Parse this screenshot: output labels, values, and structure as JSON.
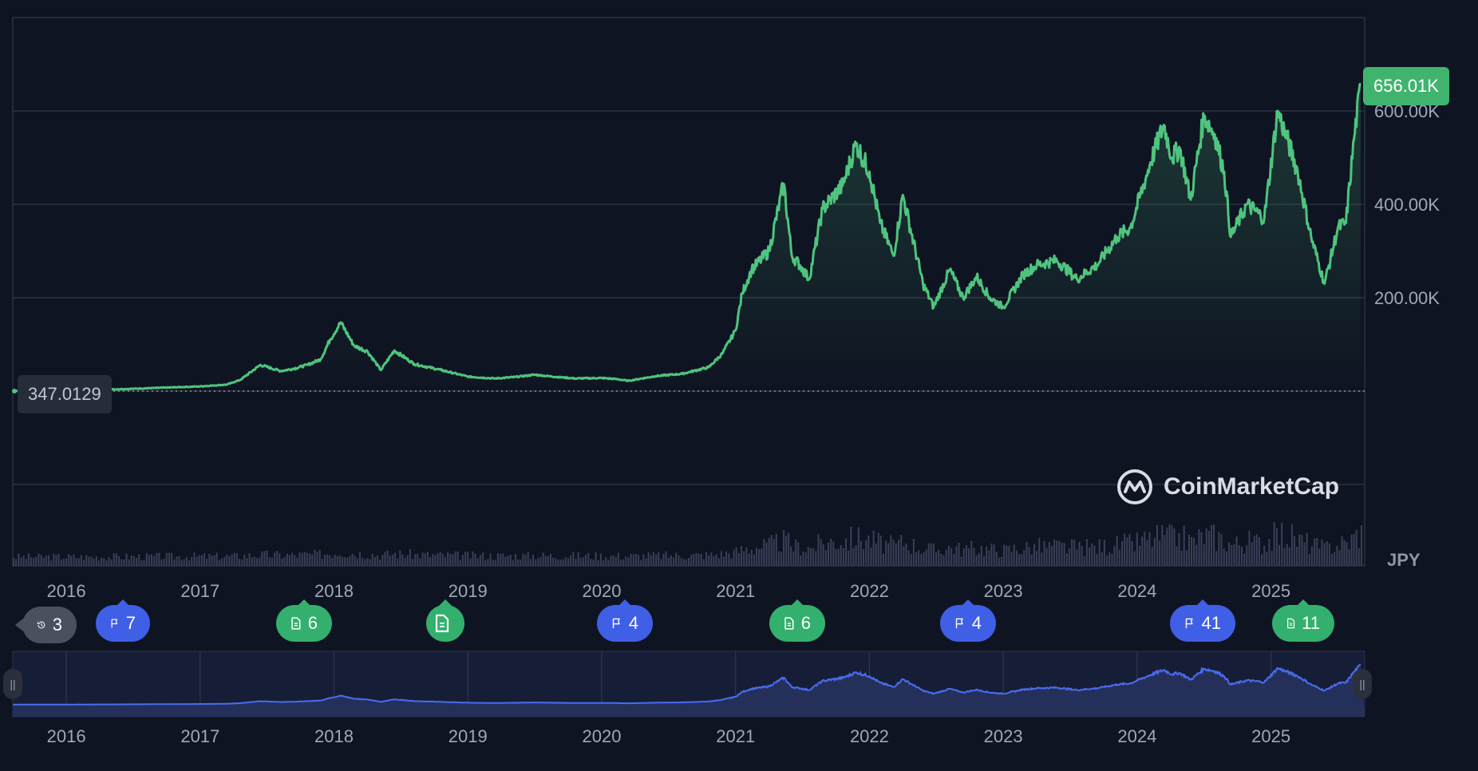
{
  "currency": "JPY",
  "price_label": "656.01K",
  "start_label": "347.0129",
  "watermark": "CoinMarketCap",
  "colors": {
    "background": "#0f1422",
    "line": "#4fc47e",
    "grid": "#2a3040",
    "volume": "#3a4058",
    "navigator_line": "#4a6cf0",
    "navigator_bg": "#161d36"
  },
  "chart_data": {
    "type": "area",
    "y_ticks": [
      "200.00K",
      "400.00K",
      "600.00K"
    ],
    "y_tick_values": [
      200000,
      400000,
      600000
    ],
    "ylim": [
      -200000,
      800000
    ],
    "xlim": [
      2015.6,
      2025.7
    ],
    "x_ticks": [
      "2016",
      "2017",
      "2018",
      "2019",
      "2020",
      "2021",
      "2022",
      "2023",
      "2024",
      "2025"
    ],
    "x_tick_values": [
      2016,
      2017,
      2018,
      2019,
      2020,
      2021,
      2022,
      2023,
      2024,
      2025
    ],
    "series": [
      {
        "x": [
          2015.6,
          2016.0,
          2016.5,
          2016.9,
          2017.0,
          2017.2,
          2017.3,
          2017.45,
          2017.6,
          2017.7,
          2017.8,
          2017.9,
          2017.97,
          2018.05,
          2018.15,
          2018.25,
          2018.35,
          2018.45,
          2018.6,
          2018.8,
          2019.0,
          2019.2,
          2019.35,
          2019.5,
          2019.6,
          2019.8,
          2020.0,
          2020.1,
          2020.2,
          2020.4,
          2020.6,
          2020.8,
          2020.9,
          2021.0,
          2021.05,
          2021.12,
          2021.25,
          2021.36,
          2021.42,
          2021.48,
          2021.55,
          2021.65,
          2021.8,
          2021.9,
          2022.0,
          2022.08,
          2022.18,
          2022.25,
          2022.4,
          2022.48,
          2022.6,
          2022.7,
          2022.8,
          2022.9,
          2023.0,
          2023.15,
          2023.25,
          2023.4,
          2023.55,
          2023.7,
          2023.85,
          2023.95,
          2024.1,
          2024.2,
          2024.26,
          2024.32,
          2024.4,
          2024.5,
          2024.58,
          2024.65,
          2024.7,
          2024.82,
          2024.95,
          2025.05,
          2025.12,
          2025.2,
          2025.3,
          2025.4,
          2025.5,
          2025.56,
          2025.62,
          2025.67
        ],
        "y": [
          347,
          800,
          5000,
          9000,
          10000,
          14000,
          24000,
          56000,
          43000,
          48000,
          56000,
          68000,
          110000,
          147000,
          97000,
          85000,
          45000,
          87000,
          58000,
          45000,
          31000,
          27000,
          30000,
          35000,
          32000,
          27000,
          28000,
          26000,
          22000,
          32000,
          37000,
          51000,
          80000,
          130000,
          210000,
          260000,
          300000,
          444000,
          290000,
          270000,
          240000,
          390000,
          440000,
          530000,
          470000,
          360000,
          290000,
          420000,
          230000,
          180000,
          260000,
          200000,
          245000,
          200000,
          180000,
          250000,
          270000,
          280000,
          240000,
          270000,
          330000,
          350000,
          490000,
          570000,
          500000,
          520000,
          410000,
          590000,
          550000,
          470000,
          330000,
          400000,
          370000,
          600000,
          540000,
          470000,
          330000,
          230000,
          350000,
          360000,
          540000,
          656010
        ]
      }
    ]
  },
  "navigator": {
    "x_ticks": [
      "2016",
      "2017",
      "2018",
      "2019",
      "2020",
      "2021",
      "2022",
      "2023",
      "2024",
      "2025"
    ]
  },
  "markers": [
    {
      "type": "history",
      "icon": "history-icon",
      "count": "3"
    },
    {
      "type": "flag",
      "icon": "flag-icon",
      "count": "7"
    },
    {
      "type": "doc",
      "icon": "document-icon",
      "count": "6"
    },
    {
      "type": "doc",
      "icon": "document-icon",
      "count": ""
    },
    {
      "type": "flag",
      "icon": "flag-icon",
      "count": "4"
    },
    {
      "type": "doc",
      "icon": "document-icon",
      "count": "6"
    },
    {
      "type": "flag",
      "icon": "flag-icon",
      "count": "4"
    },
    {
      "type": "flag",
      "icon": "flag-icon",
      "count": "41"
    },
    {
      "type": "doc",
      "icon": "document-icon",
      "count": "11"
    }
  ]
}
